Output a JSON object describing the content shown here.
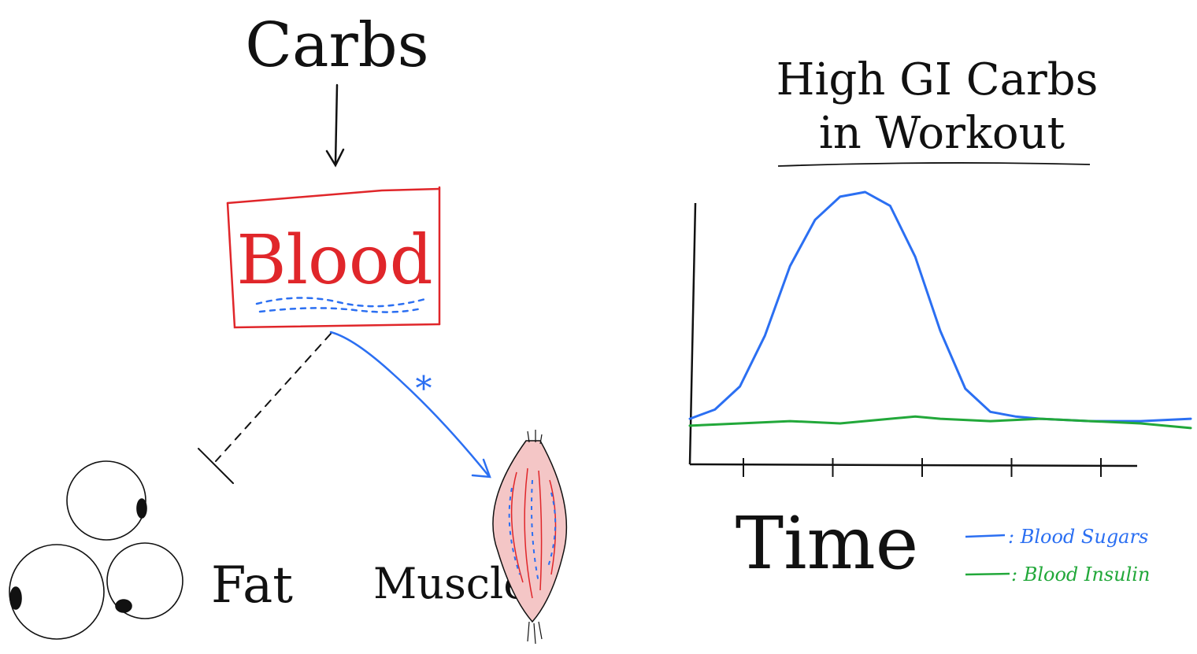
{
  "diagram": {
    "top_label": "Carbs",
    "blood_label": "Blood",
    "fat_label": "Fat",
    "muscle_label": "Muscle",
    "asterisk": "*",
    "colors": {
      "ink": "#111111",
      "blood_red": "#e0262a",
      "sugar_blue": "#2b6ff2",
      "muscle_pink": "#f4c6c6"
    }
  },
  "chart_data": {
    "type": "line",
    "title": "High GI Carbs in Workout",
    "title_line1": "High GI Carbs",
    "title_line2": "in Workout",
    "xlabel": "Time",
    "ylabel": "",
    "x_ticks": 5,
    "series": [
      {
        "name": "Blood Sugars",
        "legend_text": ": Blood Sugars",
        "color": "#2b6ff2",
        "x": [
          0,
          0.05,
          0.1,
          0.15,
          0.2,
          0.25,
          0.3,
          0.35,
          0.4,
          0.45,
          0.5,
          0.55,
          0.6,
          0.65,
          0.7,
          0.8,
          0.9,
          1.0
        ],
        "y": [
          0.02,
          0.06,
          0.16,
          0.38,
          0.68,
          0.88,
          0.98,
          1.0,
          0.94,
          0.72,
          0.4,
          0.15,
          0.05,
          0.03,
          0.02,
          0.01,
          0.01,
          0.02
        ]
      },
      {
        "name": "Blood Insulin",
        "legend_text": ": Blood Insulin",
        "color": "#22a83a",
        "x": [
          0,
          0.1,
          0.2,
          0.3,
          0.4,
          0.45,
          0.5,
          0.6,
          0.7,
          0.8,
          0.9,
          1.0
        ],
        "y": [
          -0.01,
          0.0,
          0.01,
          0.0,
          0.02,
          0.03,
          0.02,
          0.01,
          0.02,
          0.01,
          0.0,
          -0.02
        ]
      }
    ]
  }
}
